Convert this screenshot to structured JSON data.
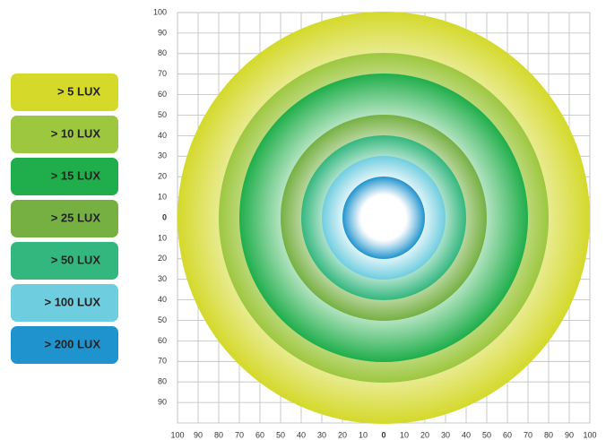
{
  "chart_data": {
    "type": "concentric",
    "xlim": [
      -100,
      100
    ],
    "ylim": [
      -100,
      100
    ],
    "xticks": [
      {
        "value": -100,
        "label": "100"
      },
      {
        "value": -90,
        "label": "90"
      },
      {
        "value": -80,
        "label": "80"
      },
      {
        "value": -70,
        "label": "70"
      },
      {
        "value": -60,
        "label": "60"
      },
      {
        "value": -50,
        "label": "50"
      },
      {
        "value": -40,
        "label": "40"
      },
      {
        "value": -30,
        "label": "30"
      },
      {
        "value": -20,
        "label": "20"
      },
      {
        "value": -10,
        "label": "10"
      },
      0,
      10,
      20,
      30,
      40,
      50,
      60,
      70,
      80,
      90,
      100
    ],
    "yticks": [
      100,
      90,
      80,
      70,
      60,
      50,
      40,
      30,
      20,
      10,
      0,
      {
        "value": -10,
        "label": "10"
      },
      {
        "value": -20,
        "label": "20"
      },
      {
        "value": -30,
        "label": "30"
      },
      {
        "value": -40,
        "label": "40"
      },
      {
        "value": -50,
        "label": "50"
      },
      {
        "value": -60,
        "label": "60"
      },
      {
        "value": -70,
        "label": "70"
      },
      {
        "value": -80,
        "label": "80"
      },
      {
        "value": -90,
        "label": "90"
      }
    ],
    "grid": true,
    "series": [
      {
        "name": "> 5 LUX",
        "color": "#d4d92a",
        "radius": 100
      },
      {
        "name": "> 10 LUX",
        "color": "#9dc73f",
        "radius": 80
      },
      {
        "name": "> 15 LUX",
        "color": "#1fae4b",
        "radius": 70
      },
      {
        "name": "> 25 LUX",
        "color": "#76b043",
        "radius": 50
      },
      {
        "name": "> 50 LUX",
        "color": "#33b77f",
        "radius": 40
      },
      {
        "name": "> 100 LUX",
        "color": "#6fcde0",
        "radius": 30
      },
      {
        "name": "> 200 LUX",
        "color": "#1e93cd",
        "radius": 20
      }
    ]
  }
}
